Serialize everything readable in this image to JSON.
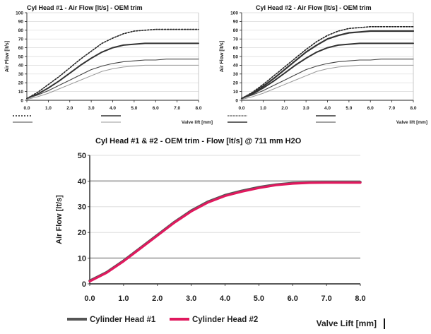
{
  "chart_data": [
    {
      "type": "line",
      "title": "Cyl Head #1 - Air Flow [lt/s] - OEM trim",
      "xlabel": "Valve lift [mm]",
      "ylabel": "Air Flow [lt/s]",
      "xlim": [
        0,
        8
      ],
      "ylim": [
        0,
        100
      ],
      "x_ticks": [
        "0.0",
        "1.0",
        "2.0",
        "3.0",
        "4.0",
        "5.0",
        "6.0",
        "7.0",
        "8.0"
      ],
      "y_ticks": [
        "0",
        "10",
        "20",
        "30",
        "40",
        "50",
        "60",
        "70",
        "80",
        "90",
        "100"
      ],
      "grid": true,
      "legend_position": "bottom",
      "x": [
        0,
        0.5,
        1,
        1.5,
        2,
        2.5,
        3,
        3.5,
        4,
        4.5,
        5,
        5.5,
        6,
        6.5,
        7,
        7.5,
        8
      ],
      "series": [
        {
          "style": "dotted",
          "values": [
            2,
            9,
            18,
            27,
            37,
            47,
            56,
            65,
            71,
            76,
            79,
            80,
            81,
            81,
            81,
            81,
            81
          ]
        },
        {
          "style": "solid-thick",
          "values": [
            2,
            7,
            14,
            22,
            31,
            40,
            48,
            55,
            60,
            63,
            64,
            65,
            65,
            65,
            65,
            65,
            65
          ]
        },
        {
          "style": "solid",
          "values": [
            2,
            6,
            11,
            17,
            23,
            29,
            35,
            39,
            42,
            44,
            45,
            46,
            46,
            47,
            47,
            47,
            47
          ]
        },
        {
          "style": "solid-light",
          "values": [
            1,
            4,
            8,
            13,
            18,
            23,
            28,
            33,
            36,
            38,
            39,
            40,
            40,
            40,
            40,
            40,
            40
          ]
        }
      ]
    },
    {
      "type": "line",
      "title": "Cyl Head #2 - Air Flow [lt/s] - OEM trim",
      "xlabel": "Valve lift [mm]",
      "ylabel": "Air Flow [lt/s]",
      "xlim": [
        0,
        8
      ],
      "ylim": [
        0,
        100
      ],
      "x_ticks": [
        "0.0",
        "1.0",
        "2.0",
        "3.0",
        "4.0",
        "5.0",
        "6.0",
        "7.0",
        "8.0"
      ],
      "y_ticks": [
        "0",
        "10",
        "20",
        "30",
        "40",
        "50",
        "60",
        "70",
        "80",
        "90",
        "100"
      ],
      "grid": true,
      "legend_position": "bottom",
      "x": [
        0,
        0.5,
        1,
        1.5,
        2,
        2.5,
        3,
        3.5,
        4,
        4.5,
        5,
        5.5,
        6,
        6.5,
        7,
        7.5,
        8
      ],
      "series": [
        {
          "style": "dotted",
          "values": [
            2,
            9,
            18,
            28,
            38,
            48,
            58,
            67,
            74,
            79,
            82,
            83,
            84,
            84,
            84,
            84,
            84
          ]
        },
        {
          "style": "solid-red-thick",
          "values": [
            2,
            8,
            16,
            25,
            35,
            45,
            55,
            63,
            70,
            74,
            77,
            78,
            79,
            79,
            79,
            79,
            79
          ]
        },
        {
          "style": "solid-thick",
          "values": [
            2,
            7,
            14,
            22,
            31,
            40,
            48,
            55,
            60,
            63,
            64,
            65,
            65,
            65,
            65,
            65,
            65
          ]
        },
        {
          "style": "solid",
          "values": [
            2,
            6,
            11,
            17,
            23,
            29,
            35,
            39,
            42,
            44,
            45,
            46,
            46,
            47,
            47,
            47,
            47
          ]
        },
        {
          "style": "solid-light",
          "values": [
            1,
            4,
            8,
            13,
            18,
            23,
            28,
            33,
            36,
            38,
            39,
            40,
            40,
            40,
            40,
            40,
            40
          ]
        }
      ]
    },
    {
      "type": "line",
      "title": "Cyl Head #1 & #2 - OEM trim - Flow [lt/s] @ 711 mm H2O",
      "xlabel": "Valve Lift [mm]",
      "ylabel": "Air Flow [lt/s]",
      "xlim": [
        0,
        8
      ],
      "ylim": [
        0,
        50
      ],
      "x_ticks": [
        "0.0",
        "1.0",
        "2.0",
        "3.0",
        "4.0",
        "5.0",
        "6.0",
        "7.0",
        "8.0"
      ],
      "y_ticks": [
        "0",
        "10",
        "20",
        "30",
        "40",
        "50"
      ],
      "grid": true,
      "legend_position": "bottom-left",
      "x": [
        0,
        0.5,
        1,
        1.5,
        2,
        2.5,
        3,
        3.5,
        4,
        4.5,
        5,
        5.5,
        6,
        6.5,
        7,
        7.5,
        8
      ],
      "series": [
        {
          "name": "Cylinder Head #1",
          "color": "#555555",
          "values": [
            1.2,
            4.5,
            9,
            14,
            19,
            24,
            28.5,
            32,
            34.5,
            36.2,
            37.6,
            38.6,
            39.2,
            39.5,
            39.6,
            39.6,
            39.6
          ]
        },
        {
          "name": "Cylinder Head #2",
          "color": "#e0195e",
          "values": [
            1.0,
            4.3,
            8.8,
            13.8,
            18.8,
            23.8,
            28.2,
            31.7,
            34.2,
            35.9,
            37.3,
            38.4,
            39.0,
            39.3,
            39.4,
            39.4,
            39.4
          ]
        }
      ]
    }
  ]
}
